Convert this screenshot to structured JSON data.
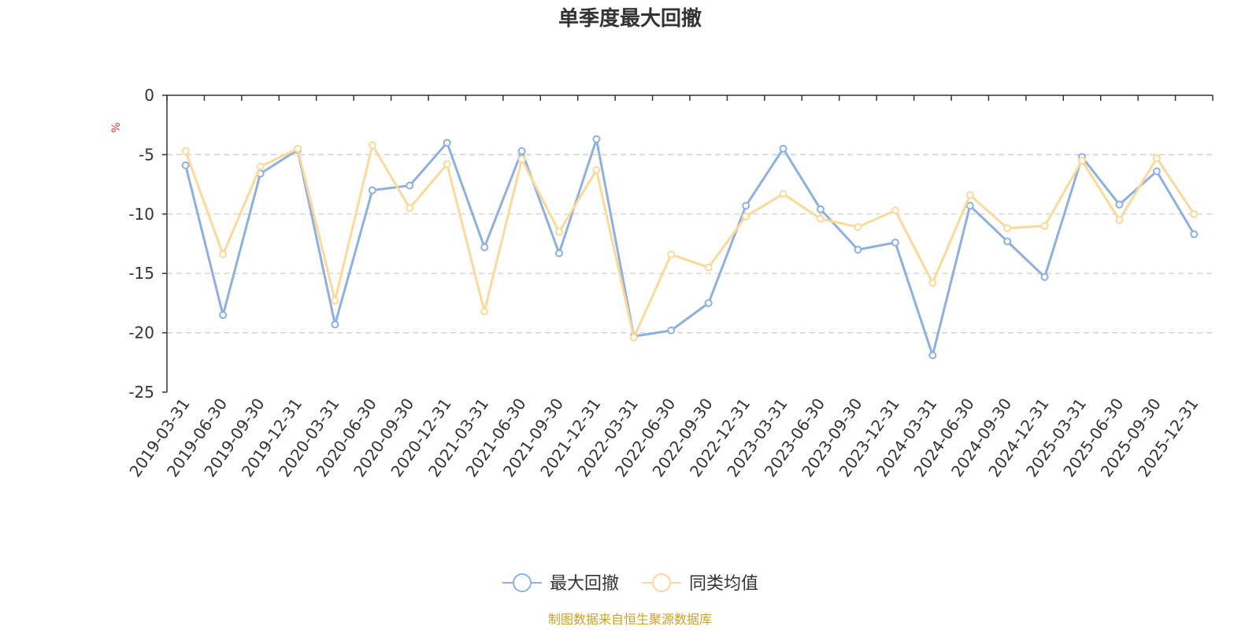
{
  "chart_data": {
    "type": "line",
    "title": "单季度最大回撤",
    "ylabel": "%",
    "ylim": [
      -25,
      0
    ],
    "yticks": [
      0,
      -5,
      -10,
      -15,
      -20,
      -25
    ],
    "grid": true,
    "legend_position": "bottom-center",
    "categories": [
      "2019-03-31",
      "2019-06-30",
      "2019-09-30",
      "2019-12-31",
      "2020-03-31",
      "2020-06-30",
      "2020-09-30",
      "2020-12-31",
      "2021-03-31",
      "2021-06-30",
      "2021-09-30",
      "2021-12-31",
      "2022-03-31",
      "2022-06-30",
      "2022-09-30",
      "2022-12-31",
      "2023-03-31",
      "2023-06-30",
      "2023-09-30",
      "2023-12-31",
      "2024-03-31",
      "2024-06-30",
      "2024-09-30",
      "2024-12-31",
      "2025-03-31",
      "2025-06-30",
      "2025-09-30",
      "2025-12-31"
    ],
    "series": [
      {
        "name": "最大回撤",
        "color": "#8eb0de",
        "values": [
          -5.9,
          -18.5,
          -6.6,
          -4.6,
          -19.3,
          -8.0,
          -7.6,
          -4.0,
          -12.8,
          -4.7,
          -13.3,
          -3.7,
          -20.3,
          -19.8,
          -17.5,
          -9.3,
          -4.5,
          -9.6,
          -13.0,
          -12.4,
          -21.9,
          -9.3,
          -12.3,
          -15.3,
          -5.2,
          -9.2,
          -6.4,
          -11.7
        ]
      },
      {
        "name": "同类均值",
        "color": "#fbd99a",
        "values": [
          -4.7,
          -13.4,
          -6.0,
          -4.5,
          -17.3,
          -4.2,
          -9.5,
          -5.8,
          -18.2,
          -5.4,
          -11.5,
          -6.3,
          -20.4,
          -13.4,
          -14.5,
          -10.2,
          -8.3,
          -10.4,
          -11.1,
          -9.7,
          -15.8,
          -8.4,
          -11.2,
          -11.0,
          -5.5,
          -10.5,
          -5.3,
          -10.0
        ]
      }
    ],
    "source": "制图数据来自恒生聚源数据库"
  }
}
